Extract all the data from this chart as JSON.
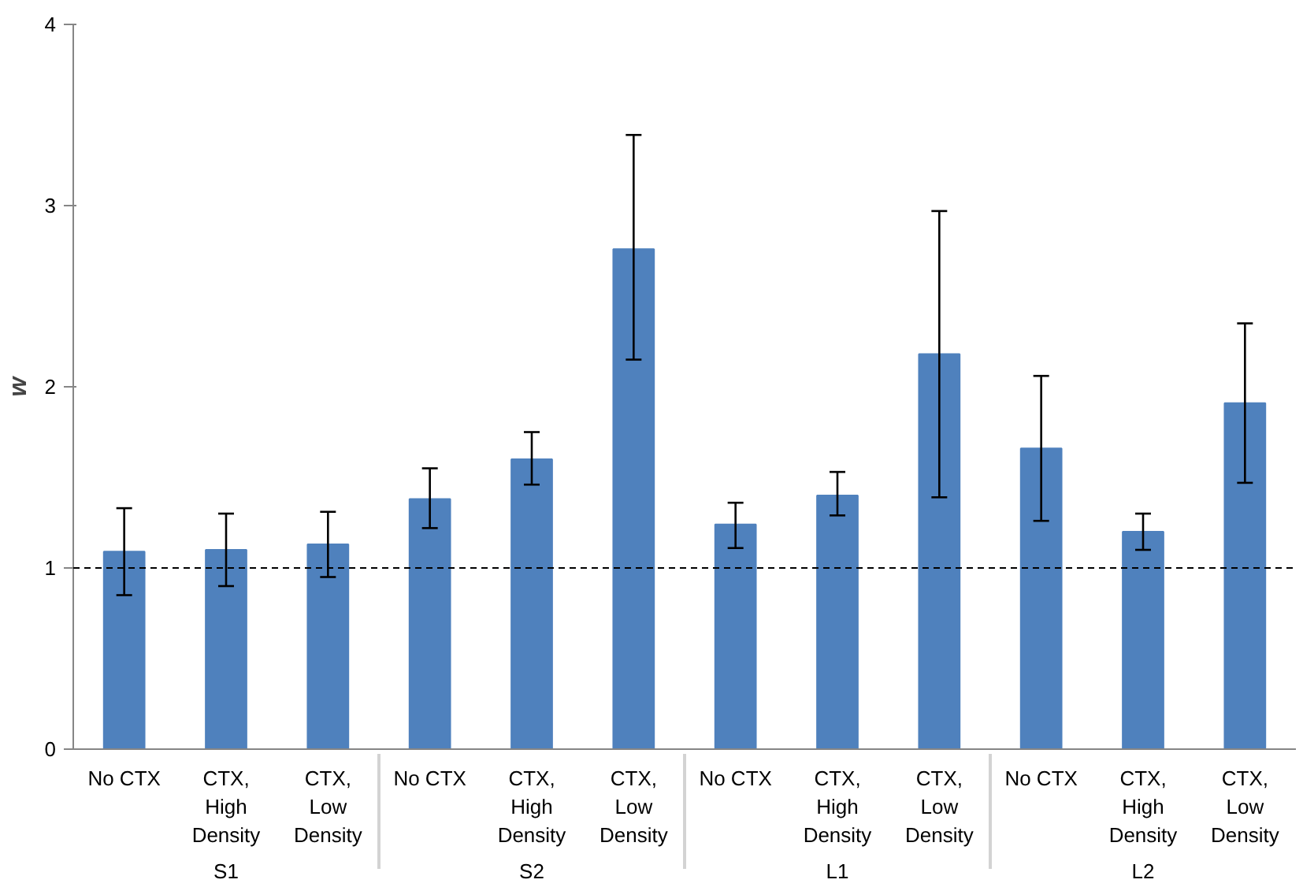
{
  "chart_data": {
    "type": "bar",
    "ylabel": "w",
    "categories": [
      "No CTX",
      "CTX, High Density",
      "CTX, Low Density",
      "No CTX",
      "CTX, High Density",
      "CTX, Low Density",
      "No CTX",
      "CTX, High Density",
      "CTX, Low Density",
      "No CTX",
      "CTX, High Density",
      "CTX, Low Density"
    ],
    "values": [
      1.09,
      1.1,
      1.13,
      1.38,
      1.6,
      2.76,
      1.24,
      1.4,
      2.18,
      1.66,
      1.2,
      1.91
    ],
    "errors": [
      [
        0.85,
        1.33
      ],
      [
        0.9,
        1.3
      ],
      [
        0.95,
        1.31
      ],
      [
        1.22,
        1.55
      ],
      [
        1.46,
        1.75
      ],
      [
        2.15,
        3.39
      ],
      [
        1.11,
        1.36
      ],
      [
        1.29,
        1.53
      ],
      [
        1.39,
        2.97
      ],
      [
        1.26,
        2.06
      ],
      [
        1.1,
        1.3
      ],
      [
        1.47,
        2.35
      ]
    ],
    "color": "#4f81bd",
    "ylim": [
      0,
      4
    ],
    "yticks": [
      0,
      1,
      2,
      3,
      4
    ],
    "grid": false,
    "ref_lines": [
      {
        "axis": "y",
        "value": 1,
        "line_style": "dashed",
        "color": "#000000"
      }
    ],
    "annotations": [
      "S1",
      "S2",
      "L1",
      "L2"
    ]
  }
}
